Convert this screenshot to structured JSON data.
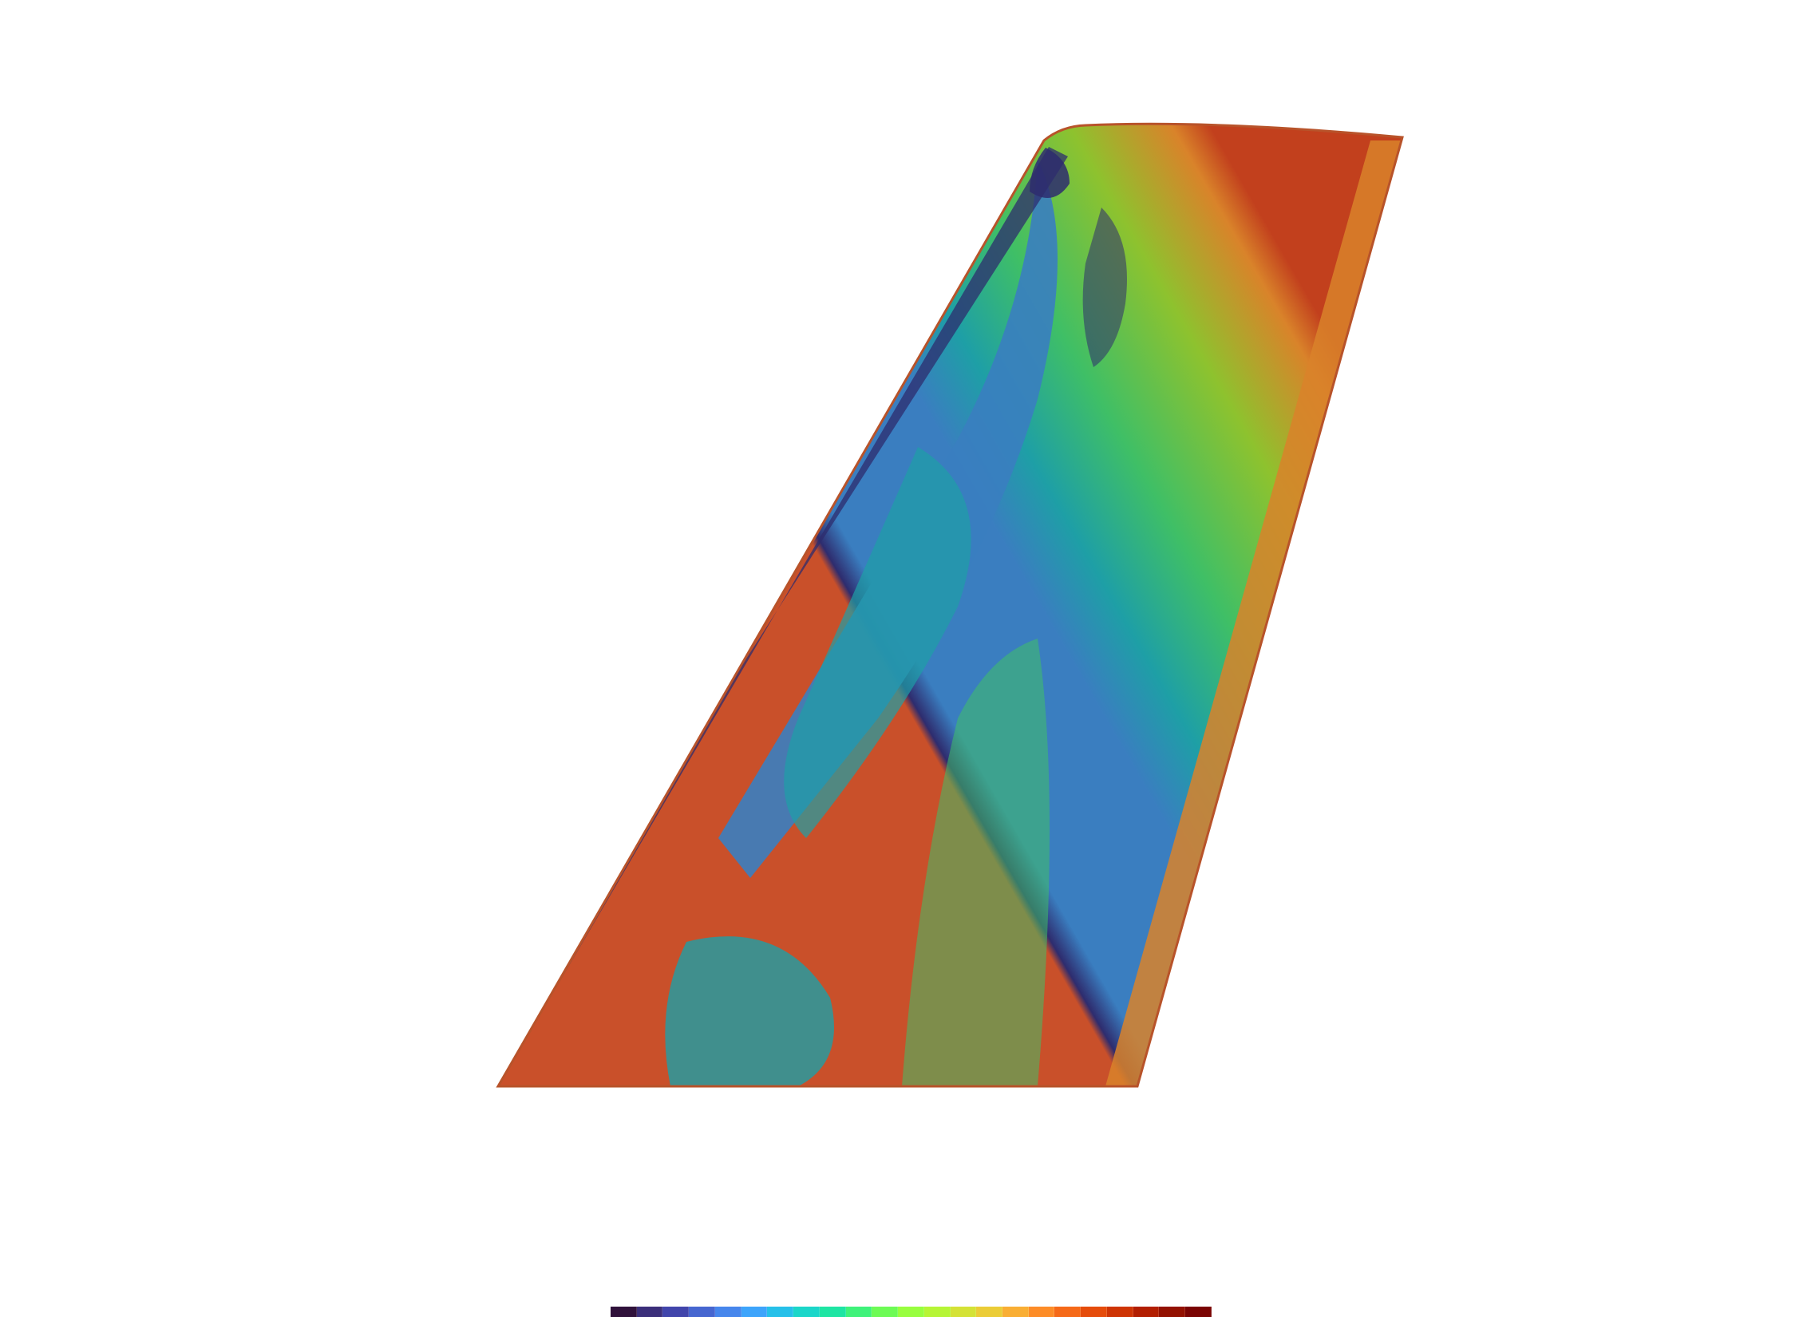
{
  "scene": {
    "background": "#ffffff",
    "subject": "tail-fin-surface",
    "colormap": "turbo"
  },
  "surface_bands": [
    {
      "name": "leading-edge-rim",
      "color": "#c9502a"
    },
    {
      "name": "dark-suction-band",
      "color": "#2e2c6e"
    },
    {
      "name": "blue-region",
      "color": "#3a7ec0"
    },
    {
      "name": "teal-region",
      "color": "#1e9fa6"
    },
    {
      "name": "green-region",
      "color": "#3fbf66"
    },
    {
      "name": "yellow-green-region",
      "color": "#8ec22e"
    },
    {
      "name": "orange-trailing-edge",
      "color": "#d9832a"
    },
    {
      "name": "red-trailing-rim",
      "color": "#c2401d"
    }
  ],
  "colorbar": {
    "colors": [
      "#30123b",
      "#3b2f7a",
      "#4145ab",
      "#4666d0",
      "#4686ec",
      "#3da4fb",
      "#26c0e9",
      "#1bd6c9",
      "#1ee5a3",
      "#3ff27a",
      "#6dfb55",
      "#98fe3f",
      "#b6f536",
      "#d4e236",
      "#ebcc37",
      "#f9ae34",
      "#fd8c27",
      "#f56918",
      "#e54c0b",
      "#ce3404",
      "#b21e01",
      "#931101",
      "#7a0403"
    ]
  }
}
